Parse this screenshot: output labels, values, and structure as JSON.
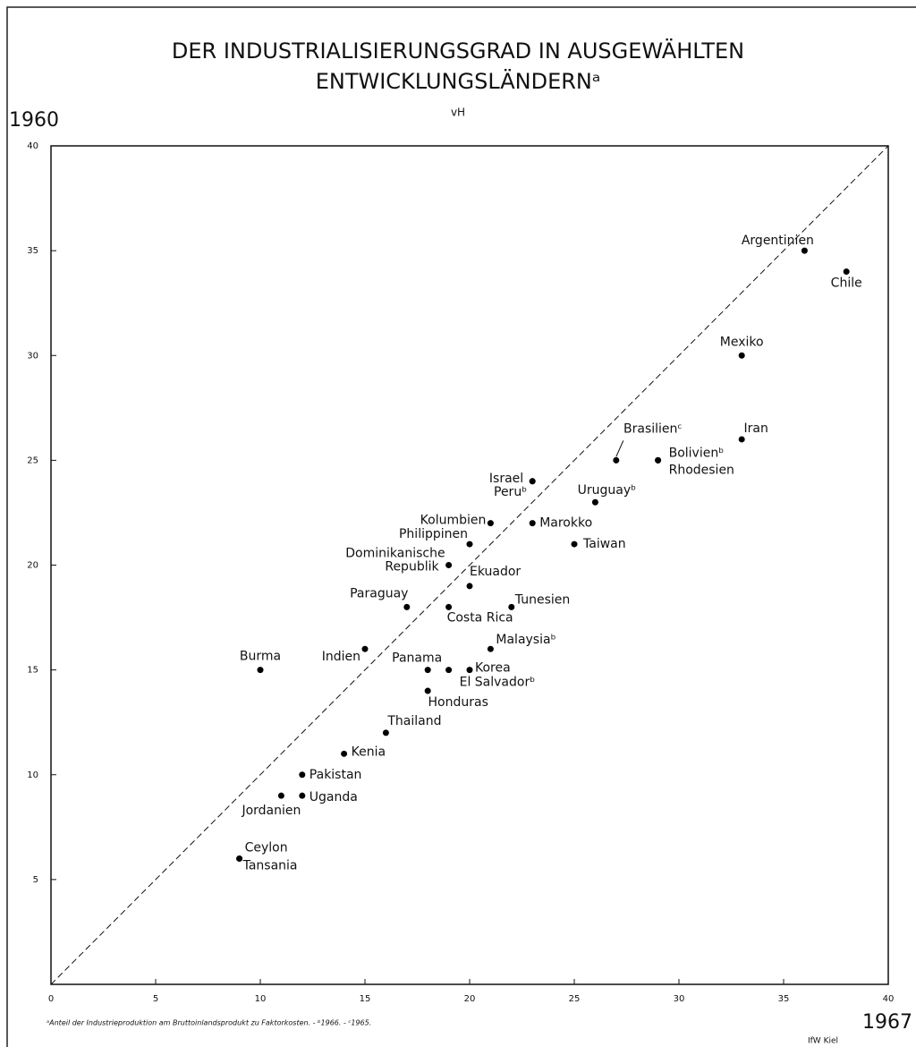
{
  "chart_data": {
    "type": "scatter",
    "title": [
      "DER INDUSTRIALISIERUNGSGRAD IN AUSGEWÄHLTEN",
      "ENTWICKLUNGSLÄNDERNᵃ"
    ],
    "unit": "vH",
    "ylabel": "1960",
    "xlabel": "1967",
    "footnote": "ᵃAnteil der Industrieproduktion am Bruttoinlandsprodukt zu Faktorkosten. - ᵇ1966. - ᶜ1965.",
    "source": "IfW Kiel",
    "xlim": [
      0,
      40
    ],
    "ylim": [
      0,
      40
    ],
    "xticks": [
      0,
      5,
      10,
      15,
      20,
      25,
      30,
      35,
      40
    ],
    "yticks": [
      5,
      10,
      15,
      20,
      25,
      30,
      35,
      40
    ],
    "color": "#000000",
    "points": [
      {
        "label": "Argentinien",
        "x": 36,
        "y": 35
      },
      {
        "label": "Chile",
        "x": 38,
        "y": 34
      },
      {
        "label": "Mexiko",
        "x": 33,
        "y": 30
      },
      {
        "label": "Iran",
        "x": 33,
        "y": 26
      },
      {
        "label": "Brasilienᶜ",
        "x": 27,
        "y": 25
      },
      {
        "label": "Bolivienᵇ",
        "x": 29,
        "y": 25
      },
      {
        "label": "Rhodesien",
        "x": 29,
        "y": 25
      },
      {
        "label": "Israel",
        "x": 23,
        "y": 24
      },
      {
        "label": "Peruᵇ",
        "x": 23,
        "y": 24
      },
      {
        "label": "Uruguayᵇ",
        "x": 26,
        "y": 23
      },
      {
        "label": "Kolumbien",
        "x": 21,
        "y": 22
      },
      {
        "label": "Marokko",
        "x": 23,
        "y": 22
      },
      {
        "label": "Philippinen",
        "x": 20,
        "y": 21
      },
      {
        "label": "Taiwan",
        "x": 25,
        "y": 21
      },
      {
        "label": [
          "Dominikanische",
          "Republik"
        ],
        "x": 19,
        "y": 20
      },
      {
        "label": "Ekuador",
        "x": 20,
        "y": 19
      },
      {
        "label": "Paraguay",
        "x": 17,
        "y": 18
      },
      {
        "label": "Costa Rica",
        "x": 19,
        "y": 18
      },
      {
        "label": "Tunesien",
        "x": 22,
        "y": 18
      },
      {
        "label": "Malaysiaᵇ",
        "x": 21,
        "y": 16
      },
      {
        "label": "Indien",
        "x": 15,
        "y": 16
      },
      {
        "label": "Burma",
        "x": 10,
        "y": 15
      },
      {
        "label": "Panama",
        "x": 18,
        "y": 15
      },
      {
        "label": "El Salvadorᵇ",
        "x": 19,
        "y": 15
      },
      {
        "label": "Korea",
        "x": 20,
        "y": 15
      },
      {
        "label": "Honduras",
        "x": 18,
        "y": 14
      },
      {
        "label": "Thailand",
        "x": 16,
        "y": 12
      },
      {
        "label": "Kenia",
        "x": 14,
        "y": 11
      },
      {
        "label": "Pakistan",
        "x": 12,
        "y": 10
      },
      {
        "label": "Uganda",
        "x": 12,
        "y": 9
      },
      {
        "label": "Jordanien",
        "x": 11,
        "y": 9
      },
      {
        "label": "Ceylon",
        "x": 9,
        "y": 6
      },
      {
        "label": "Tansania",
        "x": 9,
        "y": 6
      }
    ]
  }
}
